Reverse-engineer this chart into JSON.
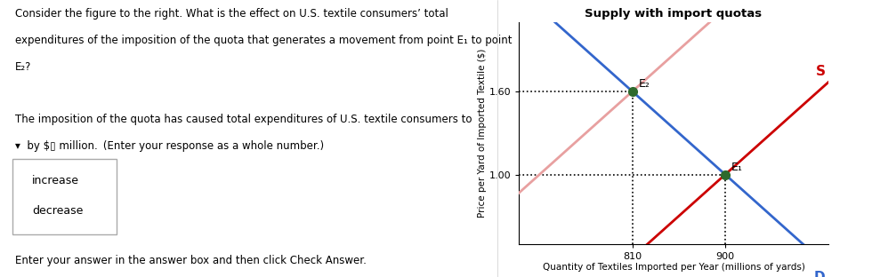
{
  "title": "Supply with import quotas",
  "xlabel": "Quantity of Textiles Imported per Year (millions of yards)",
  "ylabel": "Price per Yard of Imported Textile ($)",
  "xlim": [
    700,
    1000
  ],
  "ylim": [
    0.5,
    2.1
  ],
  "e1": [
    900,
    1.0
  ],
  "e2": [
    810,
    1.6
  ],
  "price_ticks": [
    1.0,
    1.6
  ],
  "qty_ticks": [
    810,
    900
  ],
  "supply_color": "#cc0000",
  "supply_quota_color": "#e8a0a0",
  "demand_color": "#3366cc",
  "bg_color": "#ffffff",
  "dropdown_items": [
    "increase",
    "decrease"
  ],
  "bottom_text": "Enter your answer in the answer box and then click Check Answer."
}
